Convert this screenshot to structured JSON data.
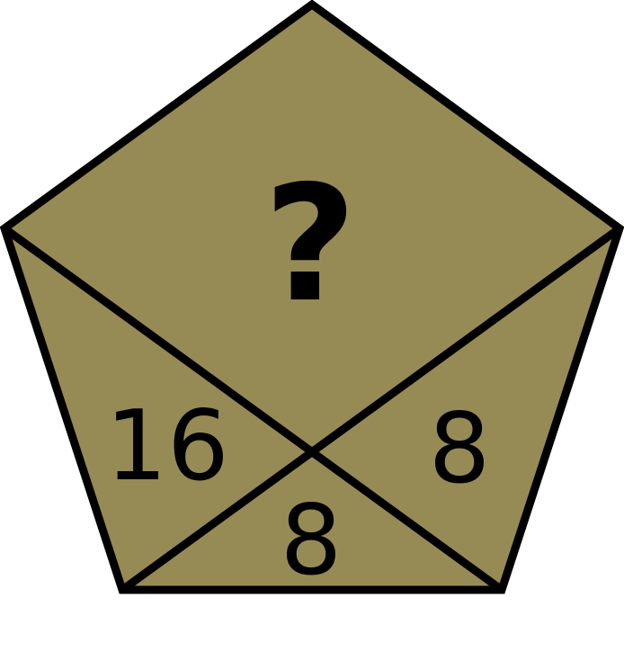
{
  "puzzle": {
    "fill_color": "#968b55",
    "stroke_color": "#000000",
    "regions": {
      "top": "?",
      "left": "16",
      "right": "8",
      "bottom": "8"
    }
  }
}
